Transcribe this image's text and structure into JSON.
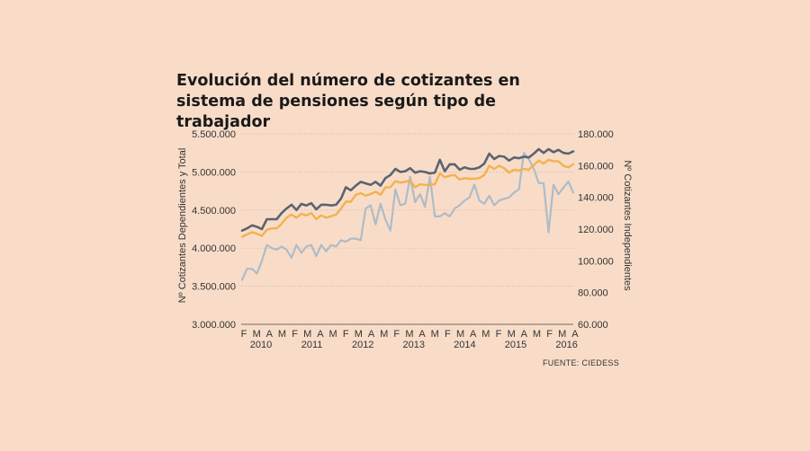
{
  "colors": {
    "background": "#f9dcc8",
    "total": "#5a6470",
    "dependientes": "#f2b24e",
    "independientes": "#aebcc8",
    "grid": "#c9b3a5"
  },
  "title": "Evolución del número de cotizantes en sistema de pensiones según tipo de trabajador",
  "source": "FUENTE: CIEDESS",
  "chart_data": {
    "type": "line",
    "ylabel_left": "Nº Cotizantes Dependientes y Total",
    "ylabel_right": "Nº Cotizantes Independientes",
    "ylim_left": [
      3000000,
      5500000
    ],
    "ylim_right": [
      60000,
      180000
    ],
    "yticks_left": [
      "3.000.000",
      "3.500.000",
      "4.000.000",
      "4.500.000",
      "5.000.000",
      "5.500.000"
    ],
    "yticks_right": [
      "60.000",
      "80.000",
      "100.000",
      "120.000",
      "140.000",
      "160.000",
      "180.000"
    ],
    "month_ticks": [
      "F",
      "M",
      "A",
      "M",
      "F",
      "M",
      "A",
      "M",
      "F",
      "M",
      "A",
      "M",
      "F",
      "M",
      "A",
      "M",
      "F",
      "M",
      "A",
      "M",
      "F",
      "M",
      "A",
      "M",
      "F",
      "M",
      "A"
    ],
    "year_labels": [
      "2010",
      "2011",
      "2012",
      "2013",
      "2014",
      "2015",
      "2016"
    ],
    "grid": true,
    "series": [
      {
        "axis": "left",
        "values": [
          4230000,
          4260000,
          4300000,
          4280000,
          4250000,
          4380000,
          4380000,
          4380000,
          4460000,
          4520000,
          4570000,
          4500000,
          4580000,
          4560000,
          4590000,
          4510000,
          4570000,
          4570000,
          4560000,
          4570000,
          4650000,
          4800000,
          4760000,
          4820000,
          4870000,
          4850000,
          4830000,
          4870000,
          4820000,
          4920000,
          4960000,
          5040000,
          5000000,
          5010000,
          5050000,
          4990000,
          5010000,
          5000000,
          4980000,
          4990000,
          5160000,
          5010000,
          5100000,
          5100000,
          5030000,
          5060000,
          5040000,
          5040000,
          5060000,
          5110000,
          5240000,
          5170000,
          5210000,
          5200000,
          5150000,
          5190000,
          5180000,
          5200000,
          5190000,
          5240000,
          5300000,
          5250000,
          5300000,
          5260000,
          5290000,
          5250000,
          5240000,
          5270000
        ]
      },
      {
        "axis": "left",
        "values": [
          4150000,
          4180000,
          4210000,
          4190000,
          4160000,
          4240000,
          4260000,
          4260000,
          4320000,
          4400000,
          4440000,
          4400000,
          4450000,
          4430000,
          4460000,
          4380000,
          4430000,
          4400000,
          4420000,
          4440000,
          4520000,
          4610000,
          4610000,
          4700000,
          4720000,
          4690000,
          4710000,
          4740000,
          4700000,
          4800000,
          4800000,
          4880000,
          4860000,
          4870000,
          4890000,
          4800000,
          4840000,
          4830000,
          4830000,
          4840000,
          4980000,
          4930000,
          4950000,
          4960000,
          4900000,
          4920000,
          4910000,
          4910000,
          4920000,
          4960000,
          5080000,
          5040000,
          5080000,
          5050000,
          4990000,
          5030000,
          5020000,
          5040000,
          5030000,
          5090000,
          5150000,
          5110000,
          5160000,
          5140000,
          5140000,
          5080000,
          5060000,
          5100000
        ]
      },
      {
        "axis": "right",
        "values": [
          88000,
          95000,
          95000,
          92000,
          100000,
          110000,
          108000,
          107000,
          109000,
          107000,
          102000,
          110000,
          105000,
          109000,
          110000,
          103000,
          110000,
          106000,
          110000,
          109000,
          113000,
          112000,
          114000,
          114000,
          113000,
          133000,
          135000,
          123000,
          136000,
          126000,
          119000,
          145000,
          135000,
          136000,
          153000,
          137000,
          142000,
          134000,
          153000,
          128000,
          128000,
          130000,
          128000,
          133000,
          135000,
          138000,
          140000,
          148000,
          138000,
          136000,
          141000,
          135000,
          138000,
          139000,
          140000,
          143000,
          145000,
          168000,
          164000,
          158000,
          149000,
          149000,
          118000,
          148000,
          142000,
          146000,
          150000,
          143000
        ]
      }
    ]
  }
}
